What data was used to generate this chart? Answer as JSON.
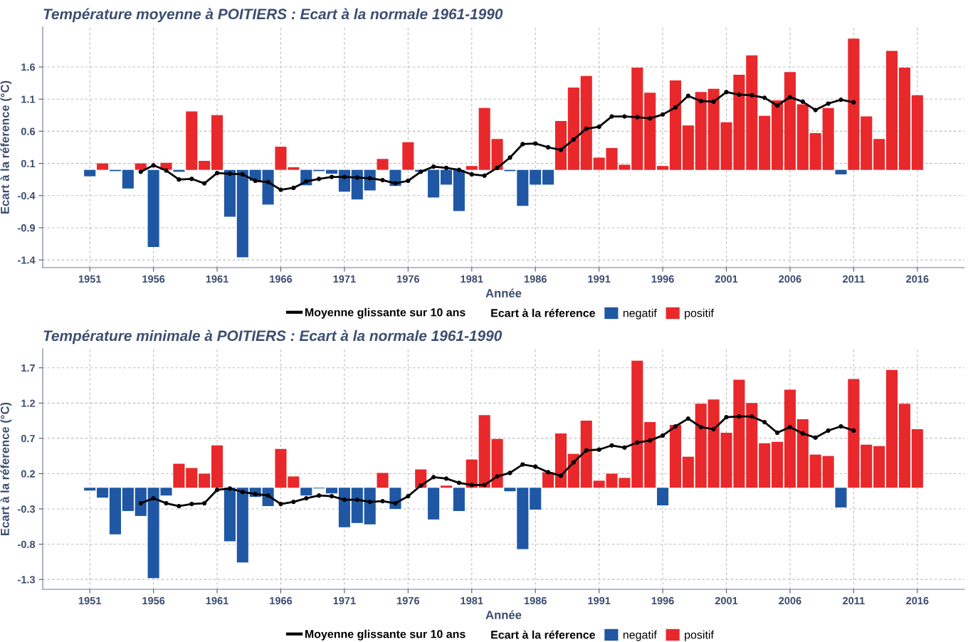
{
  "chart_data": [
    {
      "type": "bar",
      "title": "Température moyenne à POITIERS : Ecart à la normale 1961-1990",
      "xlabel": "Année",
      "ylabel": "Ecart à la réference (°C)",
      "legend_title": "Ecart à la réference",
      "x": [
        1951,
        1952,
        1953,
        1954,
        1955,
        1956,
        1957,
        1958,
        1959,
        1960,
        1961,
        1962,
        1963,
        1964,
        1965,
        1966,
        1967,
        1968,
        1969,
        1970,
        1971,
        1972,
        1973,
        1974,
        1975,
        1976,
        1977,
        1978,
        1979,
        1980,
        1981,
        1982,
        1983,
        1984,
        1985,
        1986,
        1987,
        1988,
        1989,
        1990,
        1991,
        1992,
        1993,
        1994,
        1995,
        1996,
        1997,
        1998,
        1999,
        2000,
        2001,
        2002,
        2003,
        2004,
        2005,
        2006,
        2007,
        2008,
        2009,
        2010,
        2011,
        2012,
        2013,
        2014,
        2015,
        2016
      ],
      "series": [
        {
          "name": "negatif",
          "color": "#1f57a4",
          "values": [
            -0.1,
            null,
            -0.02,
            -0.29,
            null,
            -1.2,
            null,
            -0.03,
            null,
            null,
            null,
            -0.73,
            -1.36,
            -0.17,
            -0.54,
            null,
            null,
            -0.24,
            -0.02,
            -0.06,
            -0.34,
            -0.46,
            -0.32,
            null,
            -0.25,
            null,
            -0.03,
            -0.43,
            -0.23,
            -0.64,
            null,
            null,
            null,
            -0.02,
            -0.56,
            -0.23,
            -0.23,
            null,
            null,
            null,
            null,
            null,
            null,
            null,
            null,
            null,
            null,
            null,
            null,
            null,
            null,
            null,
            null,
            null,
            null,
            null,
            null,
            null,
            null,
            -0.07,
            null,
            null,
            null,
            null,
            null,
            null
          ]
        },
        {
          "name": "positif",
          "color": "#e8282b",
          "values": [
            null,
            0.1,
            null,
            null,
            0.1,
            null,
            0.11,
            null,
            0.91,
            0.14,
            0.85,
            null,
            null,
            null,
            null,
            0.36,
            0.04,
            null,
            null,
            null,
            null,
            null,
            null,
            0.17,
            null,
            0.43,
            null,
            null,
            null,
            null,
            0.06,
            0.96,
            0.48,
            null,
            null,
            null,
            null,
            0.76,
            1.28,
            1.46,
            0.19,
            0.34,
            0.08,
            1.59,
            1.2,
            0.06,
            1.39,
            0.69,
            1.21,
            1.26,
            0.74,
            1.48,
            1.78,
            0.84,
            1.08,
            1.52,
            1.02,
            0.57,
            0.96,
            null,
            2.04,
            0.83,
            0.48,
            1.85,
            1.59,
            1.16
          ]
        },
        {
          "name": "Moyenne glissante sur 10 ans",
          "type": "line",
          "color": "#000000",
          "marker": "circle",
          "line_style": "solid",
          "x": [
            1955,
            1956,
            1957,
            1958,
            1959,
            1960,
            1961,
            1962,
            1963,
            1964,
            1965,
            1966,
            1967,
            1968,
            1969,
            1970,
            1971,
            1972,
            1973,
            1974,
            1975,
            1976,
            1977,
            1978,
            1979,
            1980,
            1981,
            1982,
            1983,
            1984,
            1985,
            1986,
            1987,
            1988,
            1989,
            1990,
            1991,
            1992,
            1993,
            1994,
            1995,
            1996,
            1997,
            1998,
            1999,
            2000,
            2001,
            2002,
            2003,
            2004,
            2005,
            2006,
            2007,
            2008,
            2009,
            2010,
            2011
          ],
          "values": [
            -0.03,
            0.07,
            -0.01,
            -0.15,
            -0.14,
            -0.21,
            -0.05,
            -0.06,
            -0.07,
            -0.17,
            -0.19,
            -0.31,
            -0.28,
            -0.18,
            -0.14,
            -0.11,
            -0.11,
            -0.12,
            -0.13,
            -0.16,
            -0.21,
            -0.17,
            -0.03,
            0.05,
            0.03,
            0.0,
            -0.07,
            -0.09,
            0.03,
            0.19,
            0.4,
            0.41,
            0.35,
            0.31,
            0.47,
            0.64,
            0.67,
            0.83,
            0.83,
            0.82,
            0.8,
            0.86,
            0.97,
            1.15,
            1.07,
            1.06,
            1.21,
            1.17,
            1.16,
            1.12,
            1.0,
            1.13,
            1.06,
            0.93,
            1.03,
            1.09,
            1.05
          ]
        }
      ],
      "xlim": [
        1947.3,
        2019.7
      ],
      "xticks": [
        1951,
        1956,
        1961,
        1966,
        1971,
        1976,
        1981,
        1986,
        1991,
        1996,
        2001,
        2006,
        2011,
        2016
      ],
      "ylim": [
        -1.52,
        2.22
      ],
      "yticks": [
        -1.4,
        -0.9,
        -0.4,
        0.1,
        0.6,
        1.1,
        1.6
      ],
      "grid": true,
      "legend": "bottom"
    },
    {
      "type": "bar",
      "title": "Température minimale à POITIERS : Ecart à la normale 1961-1990",
      "xlabel": "Année",
      "ylabel": "Ecart à la réference (°C)",
      "legend_title": "Ecart à la réference",
      "x": [
        1951,
        1952,
        1953,
        1954,
        1955,
        1956,
        1957,
        1958,
        1959,
        1960,
        1961,
        1962,
        1963,
        1964,
        1965,
        1966,
        1967,
        1968,
        1969,
        1970,
        1971,
        1972,
        1973,
        1974,
        1975,
        1976,
        1977,
        1978,
        1979,
        1980,
        1981,
        1982,
        1983,
        1984,
        1985,
        1986,
        1987,
        1988,
        1989,
        1990,
        1991,
        1992,
        1993,
        1994,
        1995,
        1996,
        1997,
        1998,
        1999,
        2000,
        2001,
        2002,
        2003,
        2004,
        2005,
        2006,
        2007,
        2008,
        2009,
        2010,
        2011,
        2012,
        2013,
        2014,
        2015,
        2016
      ],
      "series": [
        {
          "name": "negatif",
          "color": "#1f57a4",
          "values": [
            -0.04,
            -0.14,
            -0.66,
            -0.33,
            -0.4,
            -1.28,
            -0.11,
            null,
            null,
            null,
            null,
            -0.76,
            -1.06,
            -0.13,
            -0.26,
            null,
            null,
            -0.11,
            -0.01,
            -0.08,
            -0.56,
            -0.5,
            -0.52,
            null,
            -0.3,
            null,
            null,
            -0.45,
            null,
            -0.33,
            null,
            null,
            null,
            -0.05,
            -0.87,
            -0.31,
            null,
            null,
            null,
            null,
            null,
            null,
            null,
            null,
            null,
            -0.25,
            null,
            null,
            null,
            null,
            null,
            null,
            null,
            null,
            null,
            null,
            null,
            null,
            null,
            -0.28,
            null,
            null,
            null,
            null,
            null,
            null
          ]
        },
        {
          "name": "positif",
          "color": "#e8282b",
          "values": [
            null,
            null,
            null,
            null,
            null,
            null,
            null,
            0.34,
            0.28,
            0.2,
            0.6,
            null,
            null,
            null,
            null,
            0.55,
            0.16,
            null,
            null,
            null,
            null,
            null,
            null,
            0.21,
            null,
            null,
            0.26,
            null,
            0.03,
            null,
            0.4,
            1.03,
            0.69,
            null,
            null,
            null,
            0.22,
            0.77,
            0.48,
            0.95,
            0.1,
            0.2,
            0.14,
            1.8,
            0.93,
            null,
            0.89,
            0.44,
            1.19,
            1.25,
            0.78,
            1.53,
            1.2,
            0.63,
            0.65,
            1.39,
            0.97,
            0.47,
            0.45,
            null,
            1.54,
            0.61,
            0.59,
            1.67,
            1.19,
            0.83
          ]
        },
        {
          "name": "Moyenne glissante sur 10 ans",
          "type": "line",
          "color": "#000000",
          "marker": "circle",
          "line_style": "solid",
          "x": [
            1955,
            1956,
            1957,
            1958,
            1959,
            1960,
            1961,
            1962,
            1963,
            1964,
            1965,
            1966,
            1967,
            1968,
            1969,
            1970,
            1971,
            1972,
            1973,
            1974,
            1975,
            1976,
            1977,
            1978,
            1979,
            1980,
            1981,
            1982,
            1983,
            1984,
            1985,
            1986,
            1987,
            1988,
            1989,
            1990,
            1991,
            1992,
            1993,
            1994,
            1995,
            1996,
            1997,
            1998,
            1999,
            2000,
            2001,
            2002,
            2003,
            2004,
            2005,
            2006,
            2007,
            2008,
            2009,
            2010,
            2011
          ],
          "values": [
            -0.22,
            -0.15,
            -0.22,
            -0.26,
            -0.23,
            -0.22,
            -0.03,
            -0.01,
            -0.06,
            -0.09,
            -0.11,
            -0.23,
            -0.2,
            -0.15,
            -0.11,
            -0.12,
            -0.17,
            -0.17,
            -0.2,
            -0.19,
            -0.22,
            -0.12,
            0.03,
            0.15,
            0.13,
            0.07,
            0.04,
            0.04,
            0.16,
            0.21,
            0.33,
            0.3,
            0.22,
            0.17,
            0.36,
            0.53,
            0.54,
            0.6,
            0.57,
            0.64,
            0.67,
            0.74,
            0.87,
            0.98,
            0.86,
            0.83,
            1.0,
            1.01,
            1.01,
            0.93,
            0.78,
            0.86,
            0.77,
            0.71,
            0.81,
            0.87,
            0.81
          ]
        }
      ],
      "xlim": [
        1947.3,
        2019.7
      ],
      "xticks": [
        1951,
        1956,
        1961,
        1966,
        1971,
        1976,
        1981,
        1986,
        1991,
        1996,
        2001,
        2006,
        2011,
        2016
      ],
      "ylim": [
        -1.44,
        1.97
      ],
      "yticks": [
        -1.3,
        -0.8,
        -0.3,
        0.2,
        0.7,
        1.2,
        1.7
      ],
      "grid": true,
      "legend": "bottom"
    }
  ]
}
